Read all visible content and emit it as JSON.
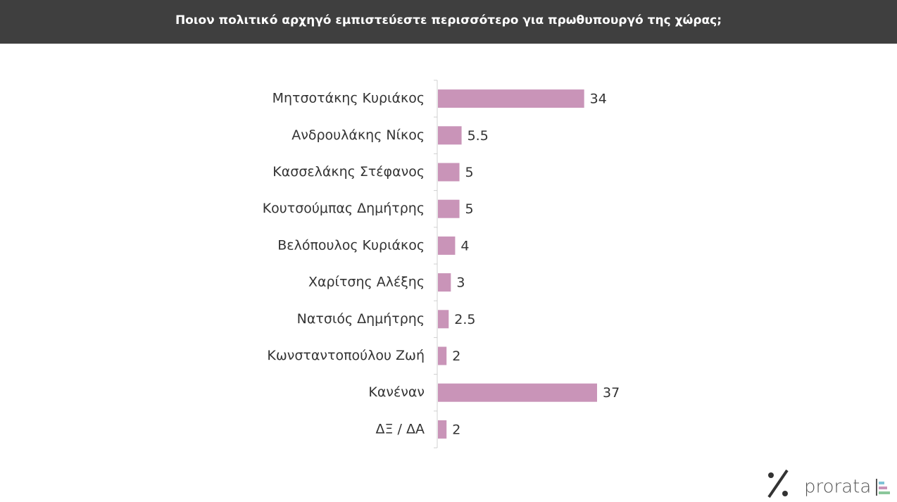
{
  "chart_data": {
    "type": "bar",
    "orientation": "horizontal",
    "title": "Ποιον πολιτικό αρχηγό εμπιστεύεστε περισσότερο για πρωθυπουργό της χώρας;",
    "categories": [
      "Μητσοτάκης Κυριάκος",
      "Ανδρουλάκης Νίκος",
      "Κασσελάκης Στέφανος",
      "Κουτσούμπας Δημήτρης",
      "Βελόπουλος Κυριάκος",
      "Χαρίτσης Αλέξης",
      "Νατσιός Δημήτρης",
      "Κωνσταντοπούλου Ζωή",
      "Κανέναν",
      "ΔΞ / ΔΑ"
    ],
    "values": [
      34,
      5.5,
      5,
      5,
      4,
      3,
      2.5,
      2,
      37,
      2
    ],
    "color": "#c994b8"
  },
  "brand": "prorata"
}
